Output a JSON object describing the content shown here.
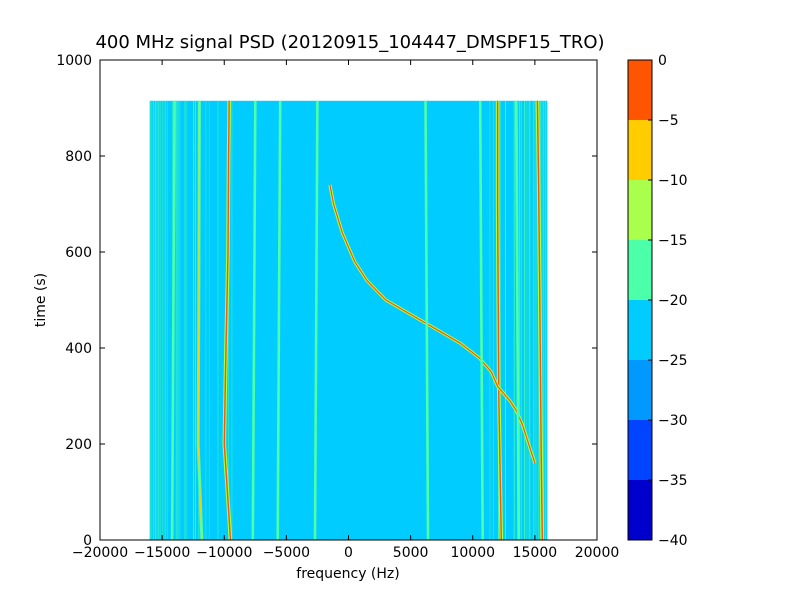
{
  "chart_data": {
    "type": "heatmap",
    "title": "400 MHz signal PSD (20120915_104447_DMSPF15_TRO)",
    "xlabel": "frequency (Hz)",
    "ylabel": "time (s)",
    "xlim": [
      -20000,
      20000
    ],
    "ylim": [
      0,
      1000
    ],
    "x_ticks": [
      -20000,
      -15000,
      -10000,
      -5000,
      0,
      5000,
      10000,
      15000,
      20000
    ],
    "y_ticks": [
      0,
      200,
      400,
      600,
      800,
      1000
    ],
    "data_extent": {
      "x": [
        -16000,
        16000
      ],
      "y": [
        0,
        915
      ]
    },
    "background_level_range": [
      -25,
      -20
    ],
    "colorbar": {
      "levels": [
        -40,
        -35,
        -30,
        -25,
        -20,
        -15,
        -10,
        -5,
        0
      ],
      "colors": [
        "#0000cd",
        "#0044ff",
        "#0099ff",
        "#00ccff",
        "#4cffa9",
        "#aaff4c",
        "#ffcc00",
        "#ff5500",
        "#cc0000"
      ]
    },
    "series": [
      {
        "style": "strong",
        "points": [
          [
            -9600,
            915
          ],
          [
            -9650,
            800
          ],
          [
            -9700,
            600
          ],
          [
            -9900,
            350
          ],
          [
            -10000,
            200
          ],
          [
            -9500,
            0
          ]
        ]
      },
      {
        "style": "strong",
        "points": [
          [
            12000,
            915
          ],
          [
            12000,
            700
          ],
          [
            12050,
            500
          ],
          [
            12100,
            300
          ],
          [
            12300,
            0
          ]
        ]
      },
      {
        "style": "strong",
        "points": [
          [
            15200,
            915
          ],
          [
            15300,
            750
          ],
          [
            15400,
            500
          ],
          [
            15500,
            200
          ],
          [
            15600,
            0
          ]
        ]
      },
      {
        "style": "medium",
        "points": [
          [
            -12000,
            915
          ],
          [
            -12050,
            500
          ],
          [
            -12100,
            200
          ],
          [
            -11800,
            0
          ]
        ]
      },
      {
        "style": "doppler",
        "points": [
          [
            -1500,
            740
          ],
          [
            -1200,
            700
          ],
          [
            -500,
            640
          ],
          [
            500,
            580
          ],
          [
            1500,
            540
          ],
          [
            3000,
            500
          ],
          [
            5000,
            470
          ],
          [
            7000,
            440
          ],
          [
            9000,
            410
          ],
          [
            10500,
            380
          ],
          [
            11500,
            350
          ],
          [
            12000,
            320
          ],
          [
            13000,
            290
          ],
          [
            13500,
            270
          ],
          [
            14000,
            240
          ],
          [
            14500,
            200
          ],
          [
            15000,
            160
          ]
        ]
      },
      {
        "style": "weak",
        "points": [
          [
            -5500,
            915
          ],
          [
            -5600,
            450
          ],
          [
            -5700,
            0
          ]
        ]
      },
      {
        "style": "weak",
        "points": [
          [
            -2500,
            915
          ],
          [
            -2600,
            450
          ],
          [
            -2700,
            0
          ]
        ]
      },
      {
        "style": "weak",
        "points": [
          [
            6200,
            915
          ],
          [
            6300,
            450
          ],
          [
            6400,
            0
          ]
        ]
      },
      {
        "style": "weak",
        "points": [
          [
            10600,
            915
          ],
          [
            10700,
            450
          ],
          [
            10800,
            0
          ]
        ]
      },
      {
        "style": "weak",
        "points": [
          [
            -7500,
            915
          ],
          [
            -7600,
            450
          ],
          [
            -7700,
            0
          ]
        ]
      },
      {
        "style": "weak",
        "points": [
          [
            -14000,
            915
          ],
          [
            -14100,
            450
          ],
          [
            -14200,
            0
          ]
        ]
      },
      {
        "style": "weak",
        "points": [
          [
            13500,
            915
          ],
          [
            13600,
            450
          ],
          [
            13700,
            0
          ]
        ]
      }
    ]
  }
}
